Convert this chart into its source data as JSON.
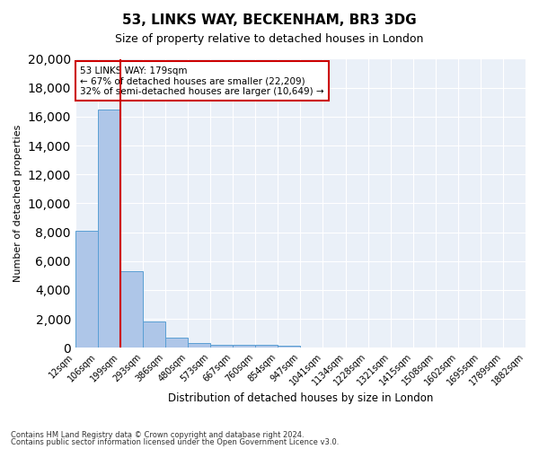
{
  "title1": "53, LINKS WAY, BECKENHAM, BR3 3DG",
  "title2": "Size of property relative to detached houses in London",
  "xlabel": "Distribution of detached houses by size in London",
  "ylabel": "Number of detached properties",
  "bin_edges": [
    "12sqm",
    "106sqm",
    "199sqm",
    "293sqm",
    "386sqm",
    "480sqm",
    "573sqm",
    "667sqm",
    "760sqm",
    "854sqm",
    "947sqm",
    "1041sqm",
    "1134sqm",
    "1228sqm",
    "1321sqm",
    "1415sqm",
    "1508sqm",
    "1602sqm",
    "1695sqm",
    "1789sqm",
    "1882sqm"
  ],
  "bar_heights": [
    8100,
    16500,
    5300,
    1850,
    700,
    320,
    230,
    200,
    200,
    170,
    0,
    0,
    0,
    0,
    0,
    0,
    0,
    0,
    0,
    0
  ],
  "bar_color": "#aec6e8",
  "bar_edge_color": "#5a9fd4",
  "bg_color": "#eaf0f8",
  "grid_color": "#ffffff",
  "red_line_x": 2,
  "annotation_text": "53 LINKS WAY: 179sqm\n← 67% of detached houses are smaller (22,209)\n32% of semi-detached houses are larger (10,649) →",
  "annotation_box_color": "#ffffff",
  "annotation_box_edge": "#cc0000",
  "red_line_color": "#cc0000",
  "footer1": "Contains HM Land Registry data © Crown copyright and database right 2024.",
  "footer2": "Contains public sector information licensed under the Open Government Licence v3.0.",
  "ylim": [
    0,
    20000
  ],
  "yticks": [
    0,
    2000,
    4000,
    6000,
    8000,
    10000,
    12000,
    14000,
    16000,
    18000,
    20000
  ]
}
